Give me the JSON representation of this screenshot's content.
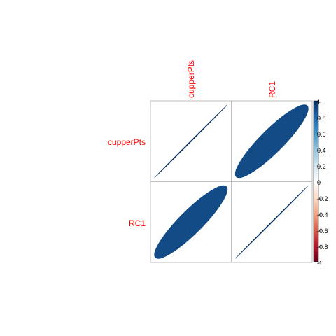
{
  "chart_data": {
    "type": "heatmap",
    "method": "ellipse",
    "variables": [
      "cupperPts",
      "RC1"
    ],
    "matrix": [
      [
        1.0,
        0.9
      ],
      [
        0.9,
        1.0
      ]
    ],
    "colorbar": {
      "range": [
        -1,
        1
      ],
      "ticks": [
        "1",
        "0.8",
        "0.6",
        "0.4",
        "0.2",
        "0",
        "-0.2",
        "-0.4",
        "-0.6",
        "-0.8",
        "-1"
      ],
      "colors": [
        "#67001F",
        "#B2182B",
        "#D6604D",
        "#F4A582",
        "#FDDBC7",
        "#FFFFFF",
        "#D1E5F0",
        "#92C5DE",
        "#4393C3",
        "#2166AC",
        "#053061"
      ]
    },
    "label_color": "#FF0000",
    "grid_color": "#BEBEBE"
  }
}
